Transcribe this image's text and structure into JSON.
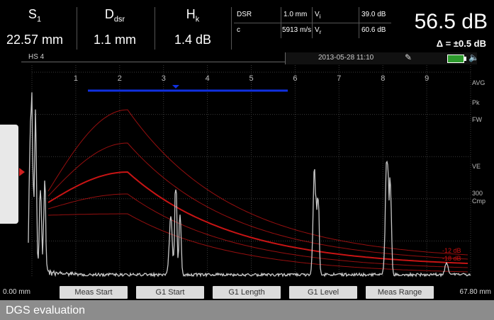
{
  "header": {
    "params": [
      {
        "label": "S",
        "sub": "1",
        "value": "22.57 mm"
      },
      {
        "label": "D",
        "sub": "dsr",
        "value": "1.1 mm"
      },
      {
        "label": "H",
        "sub": "k",
        "value": "1.4 dB"
      }
    ],
    "readout": {
      "dsr_label": "DSR",
      "dsr_value": "1.0 mm",
      "vi_label": "V",
      "vi_sub": "i",
      "vi_value": "39.0 dB",
      "c_label": "c",
      "c_value": "5913 m/s",
      "vr_label": "V",
      "vr_sub": "r",
      "vr_value": "60.6 dB"
    },
    "big_value": "56.5 dB",
    "delta": "Δ = ±0.5 dB"
  },
  "status": {
    "hs_label": "HS 4",
    "timestamp": "2013-05-28 11:10",
    "icons": [
      "pencil-icon",
      "battery-icon",
      "speaker-icon"
    ]
  },
  "plot": {
    "x_ticks": [
      "1",
      "2",
      "3",
      "4",
      "5",
      "6",
      "7",
      "8",
      "9"
    ],
    "right_labels": [
      "AVG",
      "Pk",
      "FW",
      "VE",
      "300",
      "Cmp"
    ],
    "curve_labels": [
      "-12 dB",
      "-18 dB"
    ],
    "colors": {
      "gate": "#1030e0",
      "dgs": "#c81414",
      "ascan": "#c8c8c8",
      "grid": "#3a3a3a"
    }
  },
  "softkeys": {
    "range_start": "0.00 mm",
    "range_end": "67.80 mm",
    "buttons": [
      "Meas Start",
      "G1 Start",
      "G1 Length",
      "G1 Level",
      "Meas Range"
    ]
  },
  "caption": "DGS evaluation"
}
